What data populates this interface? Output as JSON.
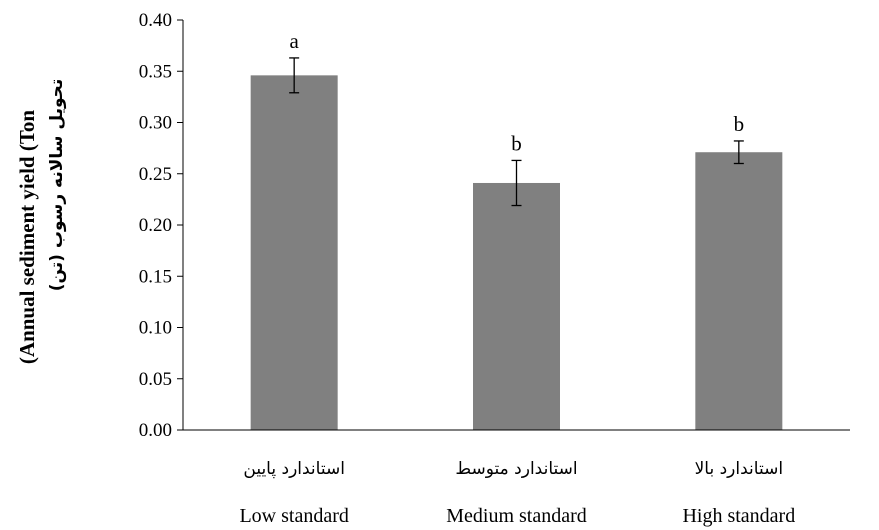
{
  "chart_data": {
    "type": "bar",
    "categories": [
      {
        "fa": "استاندارد پایین",
        "en": "Low standard"
      },
      {
        "fa": "استاندارد متوسط",
        "en": "Medium standard"
      },
      {
        "fa": "استاندارد بالا",
        "en": "High standard"
      }
    ],
    "values": [
      0.346,
      0.241,
      0.271
    ],
    "errors": [
      0.017,
      0.022,
      0.011
    ],
    "significance": [
      "a",
      "b",
      "b"
    ],
    "ylabel_en": "(Annual sediment yield (Ton",
    "ylabel_fa": "تحویل سالانه رسوب (تن)",
    "ylim": [
      0,
      0.4
    ],
    "yticks": [
      "0.00",
      "0.05",
      "0.10",
      "0.15",
      "0.20",
      "0.25",
      "0.30",
      "0.35",
      "0.40"
    ],
    "bar_color": "#808080",
    "grid": false
  }
}
